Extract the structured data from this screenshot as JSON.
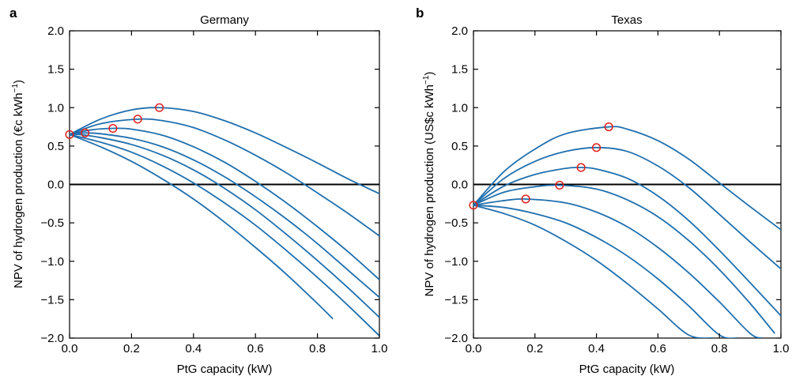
{
  "chart_data": [
    {
      "type": "line",
      "panel": "a",
      "title": "Germany",
      "xlabel": "PtG capacity (kW)",
      "ylabel_parts": [
        "NPV of hydrogen production (€c kWh",
        "−1",
        ")"
      ],
      "xlim": [
        0.0,
        1.0
      ],
      "ylim": [
        -2.0,
        2.0
      ],
      "xticks": [
        0.0,
        0.2,
        0.4,
        0.6,
        0.8,
        1.0
      ],
      "xtick_labels": [
        "0.0",
        "0.2",
        "0.4",
        "0.6",
        "0.8",
        "1.0"
      ],
      "yticks": [
        2.0,
        1.5,
        1.0,
        0.5,
        0.0,
        -0.5,
        -1.0,
        -1.5,
        -2.0
      ],
      "ytick_labels": [
        "2.0",
        "1.5",
        "1.0",
        "0.5",
        "0.0",
        "−0.5",
        "−1.0",
        "−1.5",
        "−2.0"
      ],
      "reference_line_y": 0.0,
      "line_color": "#1f6fae",
      "marker_color": "#e0201b",
      "series": [
        {
          "x": [
            0,
            0.1,
            0.2,
            0.29,
            0.4,
            0.5,
            0.6,
            0.7,
            0.8,
            0.9,
            1.0
          ],
          "values": [
            0.65,
            0.85,
            0.97,
            1.0,
            0.95,
            0.83,
            0.67,
            0.48,
            0.28,
            0.07,
            -0.12
          ]
        },
        {
          "x": [
            0,
            0.1,
            0.22,
            0.3,
            0.4,
            0.5,
            0.6,
            0.7,
            0.8,
            0.9,
            1.0
          ],
          "values": [
            0.65,
            0.79,
            0.85,
            0.83,
            0.74,
            0.58,
            0.38,
            0.15,
            -0.11,
            -0.38,
            -0.67
          ]
        },
        {
          "x": [
            0,
            0.07,
            0.14,
            0.2,
            0.3,
            0.4,
            0.5,
            0.6,
            0.7,
            0.8,
            0.9,
            1.0
          ],
          "values": [
            0.65,
            0.71,
            0.73,
            0.72,
            0.64,
            0.49,
            0.29,
            0.04,
            -0.24,
            -0.55,
            -0.88,
            -1.24
          ]
        },
        {
          "x": [
            0,
            0.05,
            0.1,
            0.2,
            0.3,
            0.4,
            0.5,
            0.6,
            0.7,
            0.8,
            0.9,
            1.0
          ],
          "values": [
            0.65,
            0.67,
            0.66,
            0.6,
            0.49,
            0.32,
            0.1,
            -0.16,
            -0.45,
            -0.77,
            -1.12,
            -1.47
          ]
        },
        {
          "x": [
            0,
            0.03,
            0.1,
            0.2,
            0.3,
            0.4,
            0.5,
            0.6,
            0.7,
            0.8,
            0.9,
            1.0
          ],
          "values": [
            0.65,
            0.65,
            0.61,
            0.52,
            0.38,
            0.19,
            -0.05,
            -0.33,
            -0.65,
            -0.99,
            -1.35,
            -1.73
          ]
        },
        {
          "x": [
            0,
            0.1,
            0.2,
            0.3,
            0.4,
            0.5,
            0.6,
            0.7,
            0.8,
            0.9,
            1.0
          ],
          "values": [
            0.65,
            0.55,
            0.42,
            0.24,
            0.02,
            -0.24,
            -0.53,
            -0.86,
            -1.21,
            -1.58,
            -1.97
          ]
        },
        {
          "x": [
            0,
            0.1,
            0.2,
            0.3,
            0.4,
            0.5,
            0.6,
            0.7,
            0.8,
            0.85
          ],
          "values": [
            0.65,
            0.49,
            0.3,
            0.07,
            -0.19,
            -0.49,
            -0.82,
            -1.17,
            -1.55,
            -1.75
          ]
        }
      ],
      "optima": {
        "x": [
          0.0,
          0.05,
          0.14,
          0.22,
          0.29
        ],
        "y": [
          0.65,
          0.67,
          0.73,
          0.85,
          1.0
        ]
      }
    },
    {
      "type": "line",
      "panel": "b",
      "title": "Texas",
      "xlabel": "PtG capacity (kW)",
      "ylabel_parts": [
        "NPV of hydrogen production (US$c kWh",
        "−1",
        ")"
      ],
      "xlim": [
        0.0,
        1.0
      ],
      "ylim": [
        -2.0,
        2.0
      ],
      "xticks": [
        0.0,
        0.2,
        0.4,
        0.6,
        0.8,
        1.0
      ],
      "xtick_labels": [
        "0.0",
        "0.2",
        "0.4",
        "0.6",
        "0.8",
        "1.0"
      ],
      "yticks": [
        2.0,
        1.5,
        1.0,
        0.5,
        0.0,
        -0.5,
        -1.0,
        -1.5,
        -2.0
      ],
      "ytick_labels": [
        "2.0",
        "1.5",
        "1.0",
        "0.5",
        "0.0",
        "−0.5",
        "−1.0",
        "−1.5",
        "−2.0"
      ],
      "reference_line_y": 0.0,
      "line_color": "#1f6fae",
      "marker_color": "#e0201b",
      "series": [
        {
          "x": [
            0,
            0.1,
            0.2,
            0.3,
            0.44,
            0.5,
            0.6,
            0.7,
            0.8,
            0.9,
            1.0
          ],
          "values": [
            -0.27,
            0.17,
            0.46,
            0.66,
            0.75,
            0.72,
            0.57,
            0.33,
            0.02,
            -0.29,
            -0.59
          ]
        },
        {
          "x": [
            0,
            0.1,
            0.2,
            0.3,
            0.4,
            0.5,
            0.6,
            0.7,
            0.8,
            0.9,
            1.0
          ],
          "values": [
            -0.27,
            0.08,
            0.3,
            0.43,
            0.48,
            0.43,
            0.24,
            -0.04,
            -0.39,
            -0.75,
            -1.1
          ]
        },
        {
          "x": [
            0,
            0.1,
            0.2,
            0.3,
            0.35,
            0.4,
            0.5,
            0.6,
            0.7,
            0.8,
            0.9,
            1.0
          ],
          "values": [
            -0.27,
            -0.02,
            0.13,
            0.21,
            0.22,
            0.2,
            0.08,
            -0.15,
            -0.47,
            -0.86,
            -1.28,
            -1.71
          ]
        },
        {
          "x": [
            0,
            0.1,
            0.2,
            0.28,
            0.4,
            0.5,
            0.6,
            0.7,
            0.8,
            0.9,
            0.98
          ],
          "values": [
            -0.27,
            -0.1,
            -0.03,
            -0.01,
            -0.06,
            -0.2,
            -0.42,
            -0.73,
            -1.11,
            -1.55,
            -1.94
          ]
        },
        {
          "x": [
            0,
            0.1,
            0.17,
            0.3,
            0.4,
            0.5,
            0.6,
            0.7,
            0.8,
            0.9,
            0.94
          ],
          "values": [
            -0.27,
            -0.21,
            -0.19,
            -0.24,
            -0.36,
            -0.55,
            -0.82,
            -1.15,
            -1.53,
            -1.94,
            -2.0
          ]
        },
        {
          "x": [
            0,
            0.1,
            0.2,
            0.3,
            0.4,
            0.5,
            0.6,
            0.7,
            0.8,
            0.86
          ],
          "values": [
            -0.27,
            -0.3,
            -0.38,
            -0.5,
            -0.69,
            -0.93,
            -1.23,
            -1.58,
            -1.96,
            -2.0
          ]
        },
        {
          "x": [
            0,
            0.1,
            0.2,
            0.3,
            0.4,
            0.5,
            0.6,
            0.7,
            0.78
          ],
          "values": [
            -0.27,
            -0.38,
            -0.53,
            -0.74,
            -0.99,
            -1.29,
            -1.62,
            -1.96,
            -2.0
          ]
        }
      ],
      "optima": {
        "x": [
          0.0,
          0.17,
          0.28,
          0.35,
          0.4,
          0.44
        ],
        "y": [
          -0.27,
          -0.19,
          -0.01,
          0.22,
          0.48,
          0.75
        ]
      }
    }
  ]
}
